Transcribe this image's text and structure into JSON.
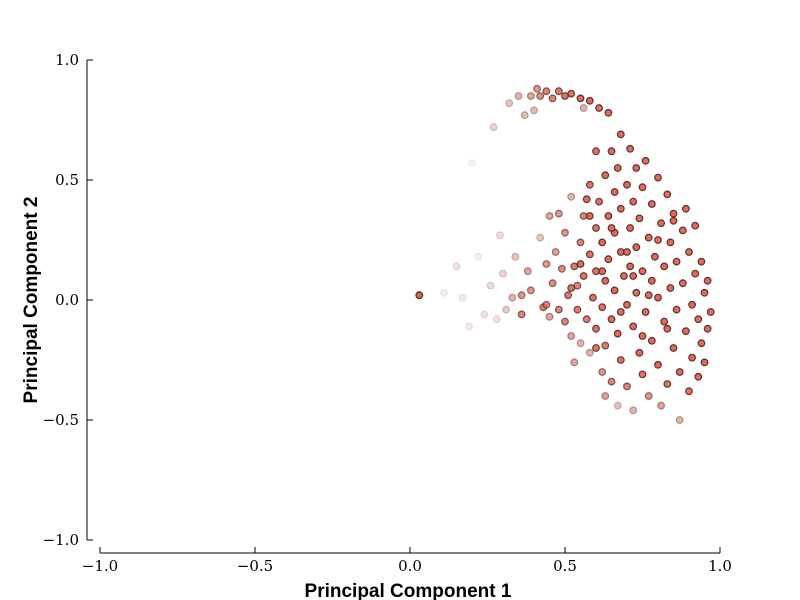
{
  "chart_data": {
    "type": "scatter",
    "title": "",
    "xlabel": "Principal Component 1",
    "ylabel": "Principal Component 2",
    "xlim": [
      -1.0,
      1.0
    ],
    "ylim": [
      -1.0,
      1.0
    ],
    "xticks": [
      -1.0,
      -0.5,
      0.0,
      0.5,
      1.0
    ],
    "yticks": [
      -1.0,
      -0.5,
      0.0,
      0.5,
      1.0
    ],
    "xtick_labels": [
      "−1.0",
      "−0.5",
      "0.0",
      "0.5",
      "1.0"
    ],
    "ytick_labels": [
      "−1.0",
      "−0.5",
      "0.0",
      "0.5",
      "1.0"
    ],
    "grid": false,
    "legend": "none",
    "marker_color": "#e8604c",
    "marker_edge_color": "#4a2a24",
    "series": [
      {
        "values": [
          [
            0.03,
            0.02,
            1.0
          ],
          [
            0.11,
            0.03,
            0.12
          ],
          [
            0.15,
            0.14,
            0.2
          ],
          [
            0.17,
            0.01,
            0.15
          ],
          [
            0.19,
            -0.11,
            0.15
          ],
          [
            0.2,
            0.57,
            0.1
          ],
          [
            0.22,
            0.18,
            0.12
          ],
          [
            0.24,
            -0.06,
            0.2
          ],
          [
            0.26,
            0.06,
            0.25
          ],
          [
            0.27,
            0.72,
            0.3
          ],
          [
            0.28,
            -0.08,
            0.2
          ],
          [
            0.29,
            0.27,
            0.25
          ],
          [
            0.3,
            0.11,
            0.3
          ],
          [
            0.31,
            -0.04,
            0.35
          ],
          [
            0.32,
            0.82,
            0.4
          ],
          [
            0.33,
            0.01,
            0.5
          ],
          [
            0.34,
            0.18,
            0.4
          ],
          [
            0.35,
            0.85,
            0.5
          ],
          [
            0.36,
            0.02,
            0.7
          ],
          [
            0.36,
            -0.06,
            0.8
          ],
          [
            0.37,
            0.77,
            0.45
          ],
          [
            0.38,
            0.12,
            0.6
          ],
          [
            0.39,
            0.85,
            0.6
          ],
          [
            0.39,
            0.04,
            0.7
          ],
          [
            0.4,
            0.79,
            0.45
          ],
          [
            0.41,
            0.88,
            0.7
          ],
          [
            0.42,
            0.85,
            0.75
          ],
          [
            0.42,
            0.26,
            0.4
          ],
          [
            0.43,
            -0.03,
            0.8
          ],
          [
            0.44,
            0.87,
            0.8
          ],
          [
            0.44,
            0.15,
            0.7
          ],
          [
            0.45,
            -0.07,
            0.6
          ],
          [
            0.46,
            0.84,
            0.8
          ],
          [
            0.46,
            0.07,
            0.75
          ],
          [
            0.47,
            0.2,
            0.65
          ],
          [
            0.48,
            0.87,
            0.85
          ],
          [
            0.48,
            -0.04,
            0.8
          ],
          [
            0.49,
            0.13,
            0.75
          ],
          [
            0.5,
            0.85,
            0.9
          ],
          [
            0.5,
            0.28,
            0.7
          ],
          [
            0.5,
            -0.09,
            0.8
          ],
          [
            0.51,
            0.02,
            0.85
          ],
          [
            0.52,
            0.86,
            0.9
          ],
          [
            0.52,
            0.43,
            0.5
          ],
          [
            0.52,
            -0.15,
            0.6
          ],
          [
            0.53,
            0.14,
            0.85
          ],
          [
            0.54,
            0.06,
            0.8
          ],
          [
            0.54,
            -0.04,
            0.85
          ],
          [
            0.55,
            0.84,
            0.95
          ],
          [
            0.55,
            0.24,
            0.8
          ],
          [
            0.55,
            -0.18,
            0.5
          ],
          [
            0.56,
            0.8,
            0.5
          ],
          [
            0.56,
            0.35,
            0.8
          ],
          [
            0.56,
            0.1,
            0.9
          ],
          [
            0.57,
            -0.08,
            0.85
          ],
          [
            0.58,
            0.83,
            0.95
          ],
          [
            0.58,
            0.48,
            0.9
          ],
          [
            0.58,
            0.19,
            0.9
          ],
          [
            0.58,
            -0.22,
            0.5
          ],
          [
            0.59,
            0.01,
            0.9
          ],
          [
            0.6,
            0.62,
            0.9
          ],
          [
            0.6,
            0.3,
            0.9
          ],
          [
            0.6,
            0.12,
            0.9
          ],
          [
            0.6,
            -0.12,
            0.9
          ],
          [
            0.61,
            0.8,
            0.95
          ],
          [
            0.61,
            0.41,
            0.9
          ],
          [
            0.62,
            0.24,
            0.95
          ],
          [
            0.62,
            -0.03,
            0.9
          ],
          [
            0.62,
            -0.3,
            0.7
          ],
          [
            0.63,
            0.52,
            0.95
          ],
          [
            0.63,
            0.08,
            0.95
          ],
          [
            0.63,
            -0.19,
            0.85
          ],
          [
            0.64,
            0.78,
            0.95
          ],
          [
            0.64,
            0.35,
            0.95
          ],
          [
            0.64,
            0.17,
            0.95
          ],
          [
            0.65,
            0.62,
            0.95
          ],
          [
            0.65,
            -0.08,
            0.95
          ],
          [
            0.65,
            -0.34,
            0.8
          ],
          [
            0.66,
            0.45,
            0.95
          ],
          [
            0.66,
            0.28,
            0.95
          ],
          [
            0.66,
            0.04,
            0.95
          ],
          [
            0.67,
            0.55,
            0.95
          ],
          [
            0.67,
            -0.14,
            0.95
          ],
          [
            0.67,
            -0.44,
            0.4
          ],
          [
            0.68,
            0.69,
            0.95
          ],
          [
            0.68,
            0.38,
            0.95
          ],
          [
            0.68,
            0.2,
            0.95
          ],
          [
            0.68,
            -0.25,
            0.9
          ],
          [
            0.69,
            0.1,
            0.95
          ],
          [
            0.7,
            0.48,
            0.95
          ],
          [
            0.7,
            -0.02,
            0.95
          ],
          [
            0.7,
            -0.36,
            0.8
          ],
          [
            0.71,
            0.63,
            0.95
          ],
          [
            0.71,
            0.3,
            0.95
          ],
          [
            0.71,
            0.14,
            0.95
          ],
          [
            0.72,
            0.41,
            0.95
          ],
          [
            0.72,
            -0.11,
            0.95
          ],
          [
            0.72,
            -0.46,
            0.5
          ],
          [
            0.73,
            0.55,
            0.95
          ],
          [
            0.73,
            0.22,
            0.95
          ],
          [
            0.73,
            0.03,
            0.95
          ],
          [
            0.74,
            -0.22,
            0.95
          ],
          [
            0.74,
            0.34,
            0.95
          ],
          [
            0.75,
            0.47,
            0.95
          ],
          [
            0.75,
            0.12,
            0.95
          ],
          [
            0.75,
            -0.31,
            0.9
          ],
          [
            0.76,
            0.58,
            0.95
          ],
          [
            0.76,
            -0.05,
            0.95
          ],
          [
            0.77,
            0.26,
            0.95
          ],
          [
            0.77,
            -0.4,
            0.7
          ],
          [
            0.78,
            0.4,
            0.95
          ],
          [
            0.78,
            0.08,
            0.95
          ],
          [
            0.78,
            -0.17,
            0.95
          ],
          [
            0.79,
            0.18,
            0.95
          ],
          [
            0.8,
            0.51,
            0.95
          ],
          [
            0.8,
            -0.27,
            0.95
          ],
          [
            0.8,
            0.01,
            0.95
          ],
          [
            0.81,
            0.32,
            0.95
          ],
          [
            0.81,
            -0.44,
            0.6
          ],
          [
            0.82,
            0.14,
            0.95
          ],
          [
            0.82,
            -0.09,
            0.95
          ],
          [
            0.83,
            0.44,
            0.95
          ],
          [
            0.83,
            -0.35,
            0.9
          ],
          [
            0.84,
            0.24,
            0.95
          ],
          [
            0.84,
            0.05,
            0.95
          ],
          [
            0.85,
            -0.2,
            0.95
          ],
          [
            0.85,
            0.36,
            0.95
          ],
          [
            0.86,
            -0.04,
            0.95
          ],
          [
            0.86,
            0.16,
            0.95
          ],
          [
            0.87,
            -0.3,
            0.95
          ],
          [
            0.87,
            -0.5,
            0.5
          ],
          [
            0.88,
            0.29,
            0.95
          ],
          [
            0.88,
            0.07,
            0.95
          ],
          [
            0.89,
            -0.13,
            0.95
          ],
          [
            0.89,
            0.38,
            0.95
          ],
          [
            0.9,
            -0.38,
            0.9
          ],
          [
            0.9,
            0.2,
            0.95
          ],
          [
            0.91,
            -0.02,
            0.95
          ],
          [
            0.91,
            -0.24,
            0.95
          ],
          [
            0.92,
            0.11,
            0.95
          ],
          [
            0.92,
            0.31,
            0.95
          ],
          [
            0.93,
            -0.32,
            0.95
          ],
          [
            0.93,
            -0.08,
            0.95
          ],
          [
            0.94,
            0.16,
            0.95
          ],
          [
            0.94,
            -0.18,
            0.95
          ],
          [
            0.95,
            0.03,
            0.95
          ],
          [
            0.95,
            -0.26,
            0.95
          ],
          [
            0.96,
            -0.12,
            0.95
          ],
          [
            0.96,
            0.08,
            0.95
          ],
          [
            0.97,
            -0.05,
            0.95
          ],
          [
            0.85,
            0.33,
            0.95
          ],
          [
            0.55,
            0.15,
            0.95
          ],
          [
            0.6,
            -0.2,
            0.9
          ],
          [
            0.65,
            0.3,
            0.95
          ],
          [
            0.7,
            0.2,
            0.95
          ],
          [
            0.75,
            -0.15,
            0.95
          ],
          [
            0.8,
            0.25,
            0.95
          ],
          [
            0.62,
            0.12,
            0.95
          ],
          [
            0.58,
            0.35,
            0.95
          ],
          [
            0.83,
            -0.12,
            0.95
          ],
          [
            0.68,
            -0.05,
            0.95
          ],
          [
            0.72,
            0.1,
            0.95
          ],
          [
            0.77,
            0.02,
            0.95
          ],
          [
            0.52,
            0.05,
            0.9
          ],
          [
            0.57,
            0.42,
            0.95
          ],
          [
            0.48,
            0.36,
            0.7
          ],
          [
            0.53,
            -0.26,
            0.6
          ],
          [
            0.44,
            -0.02,
            0.75
          ],
          [
            0.45,
            0.35,
            0.6
          ],
          [
            0.63,
            -0.4,
            0.6
          ]
        ]
      }
    ]
  }
}
